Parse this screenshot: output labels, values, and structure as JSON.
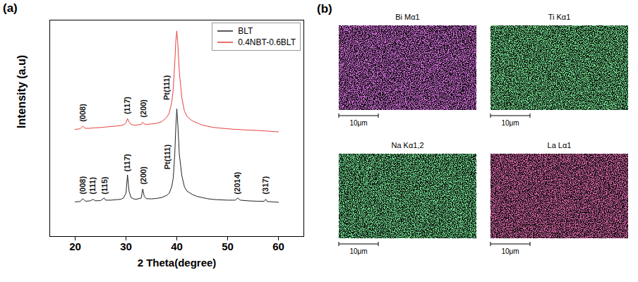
{
  "chart_data": {
    "type": "line",
    "panel": "(a)",
    "x_label": "2 Theta(degree)",
    "y_label": "Intensity (a.u)",
    "xlim": [
      15,
      65
    ],
    "xticks": [
      20,
      30,
      40,
      50,
      60
    ],
    "ylim": [
      0,
      100
    ],
    "yticks": [],
    "tick_labels": "x",
    "grid": false,
    "legend": "top-right",
    "x": [
      20,
      21,
      21.5,
      22,
      23,
      23.5,
      24,
      25,
      25.7,
      26,
      27,
      28,
      29,
      29.5,
      30,
      30.3,
      30.6,
      31,
      31.5,
      32,
      33,
      33.3,
      33.6,
      34,
      35,
      36,
      37,
      38,
      38.5,
      39,
      39.3,
      39.6,
      39.8,
      40,
      40.2,
      40.5,
      41,
      41.5,
      42,
      43,
      44,
      45,
      46,
      47,
      48,
      50,
      51.5,
      52,
      52.5,
      54,
      56,
      57.2,
      57.5,
      57.8,
      59,
      60
    ],
    "series": [
      {
        "name": "BLT",
        "color": "#222222",
        "values": [
          16,
          16.2,
          17.5,
          16.3,
          16.5,
          17.2,
          16.5,
          16.6,
          17.8,
          16.8,
          16.8,
          17,
          17.2,
          17.8,
          20,
          28.5,
          21,
          18,
          17.4,
          17.2,
          17.8,
          22,
          18.5,
          17.5,
          17.4,
          17.6,
          18,
          19,
          20,
          23,
          27,
          38,
          50,
          59,
          52,
          38,
          28,
          23,
          21,
          19.5,
          18.5,
          18,
          17.5,
          17.2,
          17,
          16.8,
          16.8,
          17.8,
          16.8,
          16.5,
          16.3,
          16.3,
          17.2,
          16.2,
          16,
          15.8
        ]
      },
      {
        "name": "0.4NBT-0.6BLT",
        "color": "#e8413c",
        "values": [
          49.5,
          49.8,
          51,
          50,
          50,
          50.2,
          50.2,
          50.4,
          50.5,
          50.6,
          50.8,
          51,
          51.3,
          51.6,
          52.5,
          54.5,
          53,
          51.8,
          51.5,
          51.5,
          51.8,
          52.8,
          52,
          51.8,
          52,
          52.3,
          53,
          55,
          57,
          62,
          68,
          80,
          90,
          95,
          89,
          76,
          64,
          58,
          55.5,
          53.5,
          52.5,
          51.5,
          51,
          50.5,
          50.2,
          49.8,
          49.5,
          49.5,
          49.4,
          49.2,
          49,
          48.8,
          48.8,
          48.7,
          48.5,
          48.4
        ]
      }
    ],
    "annotations": [
      {
        "text": "(008)",
        "x": 21.5,
        "y": 19.5
      },
      {
        "text": "(111)",
        "x": 23.5,
        "y": 19.5
      },
      {
        "text": "(115)",
        "x": 25.8,
        "y": 19.5
      },
      {
        "text": "(117)",
        "x": 30.3,
        "y": 30
      },
      {
        "text": "(200)",
        "x": 33.4,
        "y": 24
      },
      {
        "text": "Pt(111)",
        "x": 38.2,
        "y": 31
      },
      {
        "text": "(2014)",
        "x": 52,
        "y": 19.5
      },
      {
        "text": "(317)",
        "x": 57.5,
        "y": 19.5
      },
      {
        "text": "(008)",
        "x": 21.5,
        "y": 53
      },
      {
        "text": "(117)",
        "x": 30.3,
        "y": 56.5
      },
      {
        "text": "(200)",
        "x": 33.4,
        "y": 55
      },
      {
        "text": "Pt(111)",
        "x": 38,
        "y": 63
      }
    ]
  },
  "eds_maps": {
    "panel": "(b)",
    "maps": [
      {
        "title": "Bi Mα1",
        "color": "#b52bc4",
        "scale_bar": "10μm"
      },
      {
        "title": "Ti Kα1",
        "color": "#2fd04a",
        "scale_bar": "10μm"
      },
      {
        "title": "Na Kα1,2",
        "color": "#2cc84a",
        "scale_bar": "10μm"
      },
      {
        "title": "La Lα1",
        "color": "#c2246e",
        "scale_bar": "10μm"
      }
    ]
  }
}
